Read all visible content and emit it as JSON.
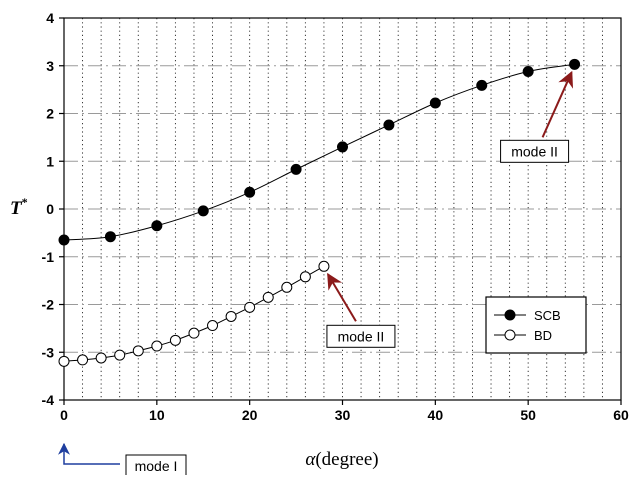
{
  "chart_data": {
    "type": "line",
    "xlabel_symbol": "α",
    "xlabel_unit": "(degree)",
    "ylabel_main": "T",
    "ylabel_sup": "*",
    "xlim": [
      0,
      60
    ],
    "ylim": [
      -4,
      4
    ],
    "xticks": [
      "0",
      "10",
      "20",
      "30",
      "40",
      "50",
      "60"
    ],
    "yticks": [
      "-4",
      "-3",
      "-2",
      "-1",
      "0",
      "1",
      "2",
      "3",
      "4"
    ],
    "grid": {
      "vertical": "dotted every 2 degrees",
      "horizontal": "dash-dot at integer values"
    },
    "legend": {
      "position": "bottom-right"
    },
    "series": [
      {
        "name": "SCB",
        "marker": "filled-circle",
        "x": [
          0,
          5,
          10,
          15,
          20,
          25,
          30,
          35,
          40,
          45,
          50,
          55
        ],
        "y": [
          -0.65,
          -0.58,
          -0.35,
          -0.04,
          0.35,
          0.83,
          1.3,
          1.76,
          2.22,
          2.59,
          2.88,
          3.03
        ]
      },
      {
        "name": "BD",
        "marker": "open-circle",
        "x": [
          0,
          2,
          4,
          6,
          8,
          10,
          12,
          14,
          16,
          18,
          20,
          22,
          24,
          26,
          28
        ],
        "y": [
          -3.19,
          -3.16,
          -3.12,
          -3.06,
          -2.97,
          -2.87,
          -2.75,
          -2.6,
          -2.44,
          -2.25,
          -2.06,
          -1.85,
          -1.64,
          -1.42,
          -1.2
        ]
      }
    ],
    "annotations": [
      {
        "name": "mode-ii-scb",
        "text": "mode II",
        "x": 55,
        "y": 3.03
      },
      {
        "name": "mode-ii-bd",
        "text": "mode II",
        "x": 28,
        "y": -1.2
      },
      {
        "name": "mode-i",
        "text": "mode I",
        "x": 0,
        "y": -4
      }
    ],
    "colors": {
      "arrow": "#8b1a1a",
      "mode_i_arrow": "#1f3f9f"
    }
  }
}
